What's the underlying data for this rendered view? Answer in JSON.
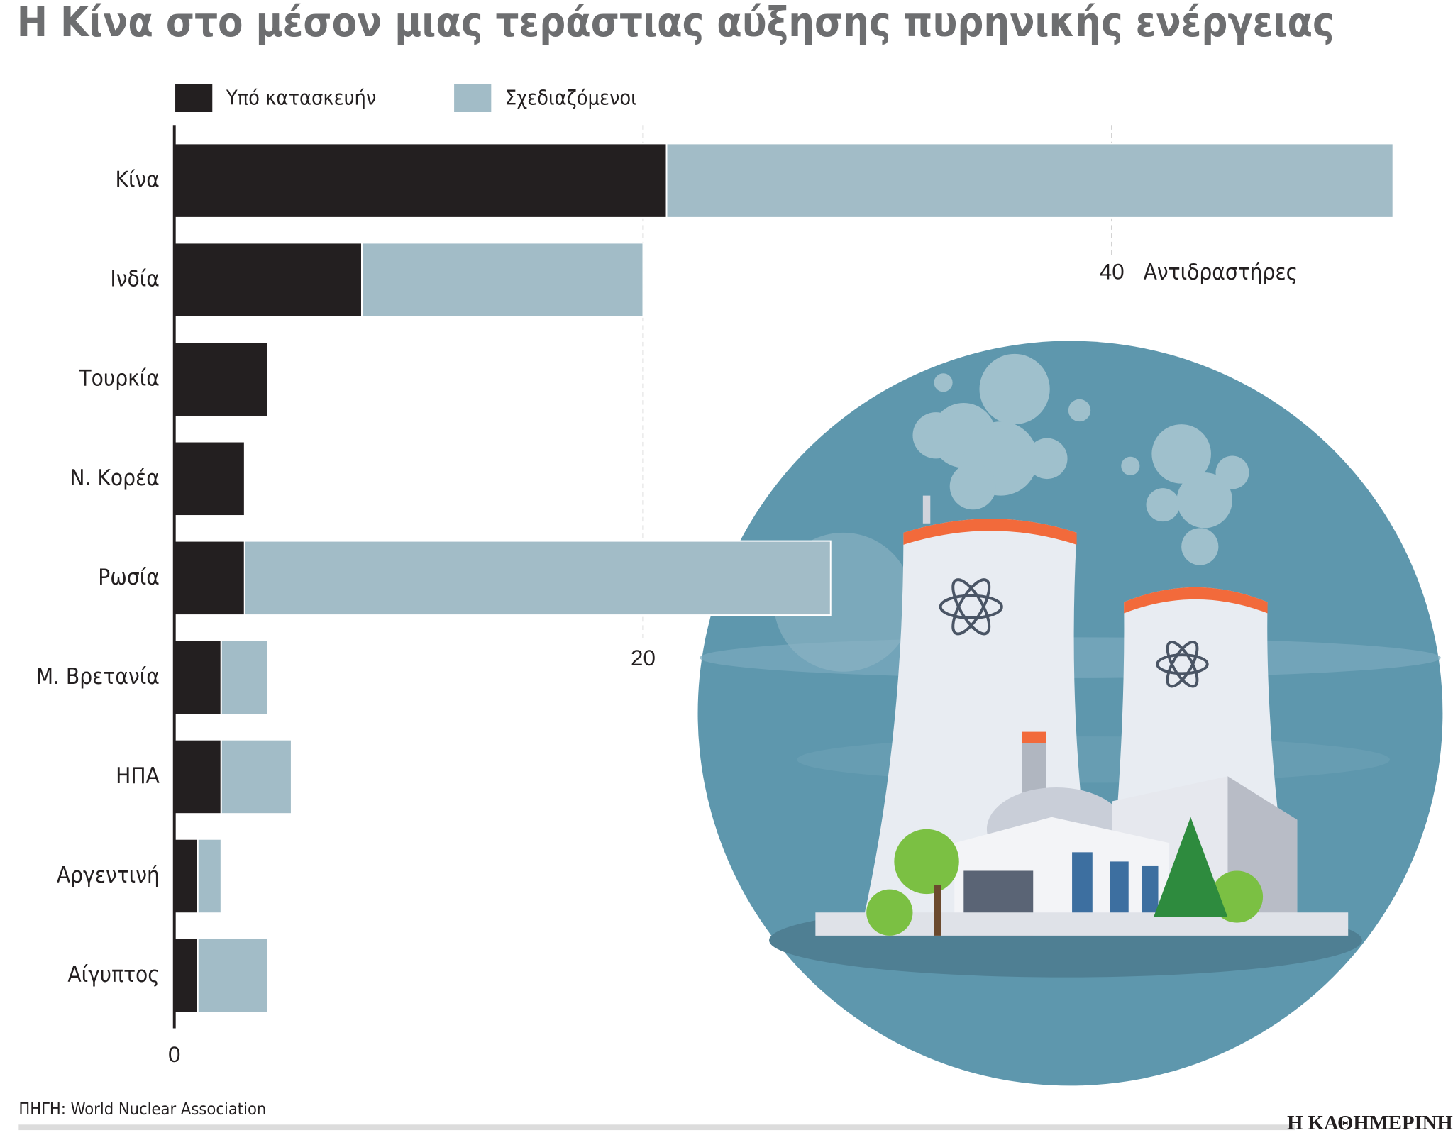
{
  "chart_data": {
    "type": "stacked-barh",
    "title": "Η Κίνα στο μέσον μιας τεράστιας αύξησης πυρηνικής ενέργειας",
    "categories": [
      "Κίνα",
      "Ινδία",
      "Τουρκία",
      "Ν. Κορέα",
      "Ρωσία",
      "Μ. Βρετανία",
      "ΗΠΑ",
      "Αργεντινή",
      "Αίγυπτος"
    ],
    "series": [
      {
        "name": "Υπό κατασκευήν",
        "color": "#231f20",
        "values": [
          21,
          8,
          4,
          3,
          3,
          2,
          2,
          1,
          1
        ]
      },
      {
        "name": "Σχεδιαζόμενοι",
        "color": "#a2bcc7",
        "values": [
          31,
          12,
          0,
          0,
          25,
          2,
          3,
          1,
          3
        ]
      }
    ],
    "xlim": [
      0,
      52
    ],
    "xticks": [
      0,
      20,
      40
    ],
    "xlabel": "Αντιδραστήρες",
    "source": "ΠΗΓΗ: World Nuclear Association",
    "publisher": "Η ΚΑΘΗΜΕΡΙΝΗ"
  }
}
